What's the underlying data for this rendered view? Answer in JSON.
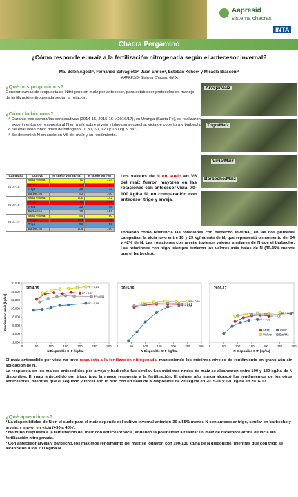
{
  "header": {
    "brand": "Aapresid",
    "sub": "sistema chacras",
    "inta": "INTA",
    "banner": "Chacra Pergamino"
  },
  "title": "¿Cómo responde el maíz a la fertilización nitrogenada según el antecesor invernal?",
  "authors": "Ma. Belén Agosti¹, Fernando Salvagiotti², Juan Enrico², Esteban Kehoe² y Micaela Biassoni²",
  "affiliation": "¹AAPRESID- Sistema Chacras, ²INTA",
  "s1": {
    "heading": "¿Qué nos propusimos?",
    "text": "Generar curvas de respuesta de Nitrógeno en maíz por antecesor, para establecer protocolos de manejo de fertilización nitrogenada según la rotación."
  },
  "s2": {
    "heading": "¿Cómo lo hicimos?",
    "bullets": [
      "Durante tres campañas consecutivas (2014-15, 2015-16 y 2016/17), en Uranga (Santa Fe), se realizaron experimentos de respuesta al N en maíz sobre arveja y trigo para cosecha, vicia de cobertura y barbecho.",
      "Se evaluaron cinco dosis de nitrógeno: 0, 30, 60, 120 y 180 kg N ha⁻¹.",
      "Se determinó N en suelo en V6 del maíz y su rendimiento."
    ]
  },
  "photos": [
    "Arveja/Maíz",
    "Trigo/Maíz",
    "Vicia/Maíz",
    "Barbecho/Maíz"
  ],
  "table": {
    "header": [
      "Campaña",
      "Cultivo",
      "N suelo V6 (kg/ha)",
      "N suelo V6 (%)"
    ],
    "groups": [
      {
        "campaign": "2014-15",
        "rows": [
          [
            "Vicia villosa",
            "70",
            "134"
          ],
          [
            "Arveja",
            "52",
            "100"
          ],
          [
            "Trigo",
            "38",
            "73"
          ],
          [
            "Barbecho",
            "53",
            "100"
          ]
        ]
      },
      {
        "campaign": "2015-16",
        "rows": [
          [
            "Vicia villosa",
            "100",
            "142"
          ],
          [
            "Arveja",
            "71",
            "100"
          ],
          [
            "Trigo",
            "32",
            "46"
          ],
          [
            "Barbecho",
            "70",
            "100"
          ]
        ]
      },
      {
        "campaign": "2016-17",
        "rows": [
          [
            "Vicia villosa",
            "94",
            "90"
          ],
          [
            "Arveja",
            "104",
            "100"
          ],
          [
            "Trigo",
            "58",
            "56"
          ],
          [
            "Barbecho",
            "104",
            "100"
          ]
        ]
      }
    ]
  },
  "side_note": [
    "Los valores de ",
    "N en suelo",
    " en V6 del maíz fueron mayores en las rotaciones con antecesor vicia: 70-100 kg/ha N, en comparación con antecesor trigo y arveja."
  ],
  "paragraph": "Tomando como referencia las rotaciones con barbecho invernal, en las dos primeras campañas, la vicia tuvo entre 18 y 29 kg/ha más de N, que representó un aumento del 34 y 42% de N. Las rotaciones con arveja, tuvieron valores similares de N que el barbecho. Las rotaciones con trigo, siempre tuvieron los valores más bajos de N (30-45% menos que el barbecho).",
  "chart_data": [
    {
      "type": "scatter",
      "title": "2014-15",
      "xlabel": "N Disponible S+F (kg/ha)",
      "ylabel": "Rendimiento maíz (kg/ha)",
      "xlim": [
        0,
        300
      ],
      "xticks": [
        0,
        50,
        100,
        150,
        200,
        250,
        300
      ],
      "ylim": [
        2000,
        16000
      ],
      "yticks": [
        {
          "value": 2000,
          "label": "2,000"
        },
        {
          "value": 4000,
          "label": "4,000"
        },
        {
          "value": 6000,
          "label": "6,000"
        },
        {
          "value": 8000,
          "label": "8,000"
        },
        {
          "value": 10000,
          "label": "10,000"
        },
        {
          "value": 12000,
          "label": "12,000"
        },
        {
          "value": 14000,
          "label": "14,000"
        },
        {
          "value": 16000,
          "label": "16,000"
        }
      ],
      "series": [
        {
          "color": "#ffff00",
          "x": [
            70,
            100,
            130,
            160,
            190,
            220
          ],
          "y": [
            13600,
            14300,
            14600,
            14700,
            14900,
            15100
          ],
          "r2": "R² = 0,81"
        },
        {
          "color": "#e31a1c",
          "x": [
            50,
            80,
            110,
            140,
            170,
            200
          ],
          "y": [
            12200,
            13400,
            13700,
            13500,
            13800,
            13600
          ],
          "r2": "R² = 0,57"
        },
        {
          "color": "#a6a6a6",
          "x": [
            60,
            90,
            120,
            150,
            180,
            240
          ],
          "y": [
            11500,
            12400,
            12800,
            13000,
            12900,
            12800
          ],
          "r2": "R² = 0,51"
        },
        {
          "color": "#2e75b6",
          "x": [
            40,
            70,
            100,
            130,
            160,
            220
          ],
          "y": [
            9600,
            9800,
            10200,
            10700,
            10800,
            11200
          ],
          "r2": "R² = 0,89"
        }
      ]
    },
    {
      "type": "scatter",
      "title": "2015-16",
      "xlabel": "N Disponible S+F (kg/ha)",
      "xlim": [
        0,
        300
      ],
      "xticks": [
        0,
        50,
        100,
        150,
        200,
        250,
        300
      ],
      "ylim": [
        2000,
        16000
      ],
      "series": [
        {
          "color": "#ffff00",
          "x": [
            90,
            130,
            170,
            210,
            250
          ],
          "y": [
            11200,
            11500,
            11800,
            11600,
            11700
          ],
          "r2": "R² = 0,86"
        },
        {
          "color": "#e31a1c",
          "x": [
            60,
            100,
            140,
            180,
            220
          ],
          "y": [
            10300,
            10800,
            11000,
            11000,
            10900
          ],
          "r2": "R² = 0,81"
        },
        {
          "color": "#a6a6a6",
          "x": [
            60,
            100,
            140,
            180,
            220
          ],
          "y": [
            10600,
            11000,
            11200,
            11300,
            11100
          ],
          "r2": "R² = 0,64"
        },
        {
          "color": "#2e75b6",
          "x": [
            40,
            70,
            100,
            140,
            180,
            220
          ],
          "y": [
            2400,
            4500,
            6800,
            9000,
            10400,
            10600
          ],
          "r2": "R² = 0,98"
        }
      ]
    },
    {
      "type": "scatter",
      "title": "2016-17",
      "xlabel": "N Disponible S+F (kg/ha)",
      "xlim": [
        0,
        300
      ],
      "xticks": [
        0,
        50,
        100,
        150,
        200,
        250,
        300
      ],
      "ylim": [
        2000,
        16000
      ],
      "legend": "lower right",
      "series": [
        {
          "name": "Ar/Mz",
          "color": "#e31a1c",
          "x": [
            90,
            120,
            150,
            180,
            210
          ],
          "y": [
            6900,
            7800,
            8300,
            8400,
            8200
          ],
          "r2": "R² = 0,51"
        },
        {
          "name": "Tr/Mz",
          "color": "#2e75b6",
          "x": [
            50,
            80,
            110,
            140,
            170
          ],
          "y": [
            4100,
            5800,
            6700,
            7200,
            7400
          ],
          "r2": "R² = 0,93"
        },
        {
          "name": "Vic/Mz",
          "color": "#ffff00",
          "x": [
            90,
            130,
            170,
            210,
            250
          ],
          "y": [
            8200,
            8700,
            8900,
            8800,
            9000
          ],
          "r2": "R² = 0,026"
        },
        {
          "name": "Bar/Mz",
          "color": "#a6a6a6",
          "x": [
            100,
            150,
            200,
            250,
            290
          ],
          "y": [
            8300,
            8500,
            8700,
            8600,
            8800
          ],
          "r2": "R² = 0,88"
        }
      ]
    }
  ],
  "results": [
    "El maíz antecedido por vicia no tuvo ",
    "respuesta a la fertilización nitrogenada",
    ", manteniendo los máximos niveles de rendimiento en grano aún sin aplicación de N."
  ],
  "results2": "La respuesta en los maíces antecedidos por arveja y barbecho fue similar. Los máximos rindes de maíz se alcanzaron entre 100 y 130 kg/ha de N disponible. El maíz antecedido por trigo, tuvo la mayor respuesta a la fertilización. El primer año nunca alcanzó los rendimientos de los otros antecesores, mientras que el segundo y tercer año lo hizo con un nivel de N disponible de 200 kg/ha en 2015-16 y 120 kg/ha en 2016-17.",
  "learned": {
    "heading": "¿Qué aprendimos?",
    "items": [
      "* La disponibilidad de N en el suelo para el maíz depende del cultivo invernal anterior: 30 a 55% menos N con antecesor trigo, similar en barbecho y arveja, y mayor en vicia (+30 a 40%).",
      "* No hubo respuesta a la fertilización del maíz con antecesor vicia, abriendo la posibilidad a realizar un maíz de diciembre arriba de vicia sin fertilización nitrogenada.",
      "* Con antecesor arveja y barbecho, los máximos rendimiento del maíz se lograron con 100-130 kg/ha de N disponible, mientras que con trigo se alcanzaron a los 200 kg/ha N."
    ]
  }
}
